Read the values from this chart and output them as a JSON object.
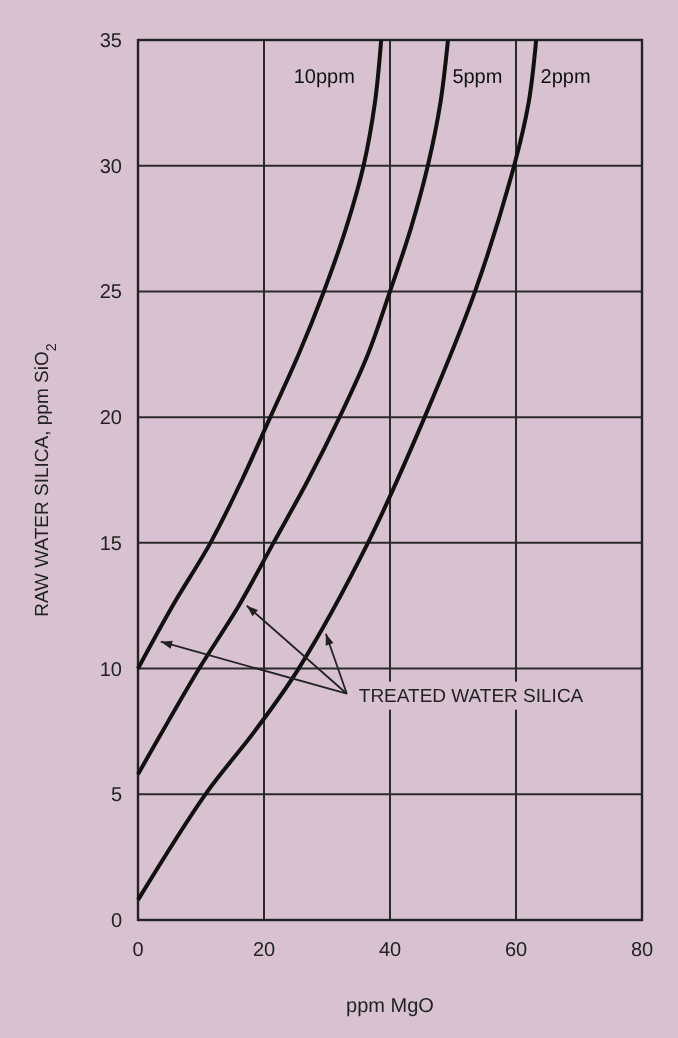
{
  "chart_data": {
    "type": "line",
    "xlabel": "ppm MgO",
    "ylabel": "RAW WATER SILICA, ppm SiO$_{2}$",
    "xlim": [
      0,
      80
    ],
    "ylim": [
      0,
      35
    ],
    "xticks": [
      0,
      20,
      40,
      60,
      80
    ],
    "yticks": [
      0,
      5,
      10,
      15,
      20,
      25,
      30,
      35
    ],
    "grid": true,
    "marker": "none",
    "line_style": "solid",
    "series": [
      {
        "name": "10ppm",
        "color": "#111111",
        "x": [
          0,
          5.5,
          11.5,
          16.5,
          21,
          25.5,
          29.5,
          33,
          35.8,
          37.6,
          38.6
        ],
        "values": [
          10,
          12.5,
          15,
          17.5,
          20,
          22.5,
          25,
          27.5,
          30,
          32.5,
          35
        ]
      },
      {
        "name": "5ppm",
        "color": "#111111",
        "x": [
          0,
          4.8,
          9.7,
          16,
          21.5,
          27,
          32,
          36.5,
          40,
          43.3,
          46,
          48,
          49.2
        ],
        "values": [
          5.8,
          7.9,
          10,
          12.5,
          15,
          17.5,
          20,
          22.5,
          25,
          27.5,
          30,
          32.5,
          35
        ]
      },
      {
        "name": "2ppm",
        "color": "#111111",
        "x": [
          0,
          10.7,
          18.5,
          25.5,
          36.5,
          45.5,
          53.5,
          59.7,
          62,
          63.2
        ],
        "values": [
          0.8,
          5,
          7.5,
          10,
          15,
          20,
          25,
          30,
          32.5,
          35
        ]
      }
    ],
    "annotations": [
      {
        "text": "TREATED WATER SILICA",
        "x": 16,
        "y": 12.5
      }
    ]
  }
}
